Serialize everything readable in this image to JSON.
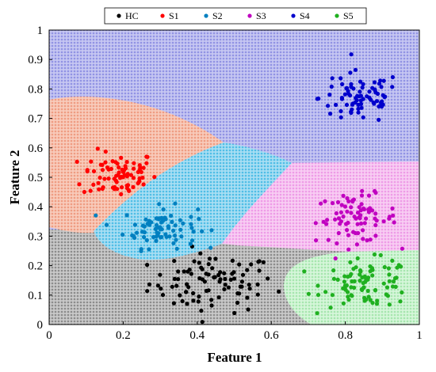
{
  "chart_data": {
    "type": "scatter",
    "title": "",
    "xlabel": "Feature 1",
    "ylabel": "Feature 2",
    "xlim": [
      0,
      1
    ],
    "ylim": [
      0,
      1
    ],
    "xticks": [
      "0",
      "0.2",
      "0.4",
      "0.6",
      "0.8",
      "1"
    ],
    "yticks": [
      "0",
      "0.1",
      "0.2",
      "0.3",
      "0.4",
      "0.5",
      "0.6",
      "0.7",
      "0.8",
      "0.9",
      "1"
    ],
    "grid": false,
    "legend_position": "top",
    "background": "dense dotted decision-region map (one colour per class)",
    "regions": [
      {
        "class": "S4",
        "color": "#b2b4ee",
        "description": "top band above about 0.55-0.78, full width"
      },
      {
        "class": "S1",
        "color": "#f4b6a0",
        "description": "upper-left lobe, x 0-0.55, y 0.33-0.76"
      },
      {
        "class": "S2",
        "color": "#8fd3ee",
        "description": "diagonal band from (0.15,0.3) to (0.8,0.55)"
      },
      {
        "class": "S3",
        "color": "#f4b6ee",
        "description": "right region, x 0.6-1, y 0.26-0.56"
      },
      {
        "class": "HC",
        "color": "#b9b9b9",
        "description": "bottom band, y 0-0.32"
      },
      {
        "class": "S5",
        "color": "#c2f0c8",
        "description": "bottom-right lobe, x 0.76-1, y 0.06-0.26"
      }
    ],
    "series": [
      {
        "name": "HC",
        "color": "#000000",
        "center": [
          0.44,
          0.14
        ],
        "spread": [
          0.085,
          0.05
        ],
        "points": 90
      },
      {
        "name": "S1",
        "color": "#ff0000",
        "center": [
          0.19,
          0.51
        ],
        "spread": [
          0.05,
          0.04
        ],
        "points": 80
      },
      {
        "name": "S2",
        "color": "#0080c0",
        "center": [
          0.3,
          0.33
        ],
        "spread": [
          0.05,
          0.035
        ],
        "points": 80
      },
      {
        "name": "S3",
        "color": "#c000c0",
        "center": [
          0.83,
          0.36
        ],
        "spread": [
          0.055,
          0.04
        ],
        "points": 80
      },
      {
        "name": "S4",
        "color": "#0000cc",
        "center": [
          0.84,
          0.77
        ],
        "spread": [
          0.055,
          0.045
        ],
        "points": 80
      },
      {
        "name": "S5",
        "color": "#20b020",
        "center": [
          0.86,
          0.14
        ],
        "spread": [
          0.06,
          0.04
        ],
        "points": 90
      }
    ]
  },
  "legend": {
    "items": [
      {
        "label": "HC",
        "color": "#000000"
      },
      {
        "label": "S1",
        "color": "#ff0000"
      },
      {
        "label": "S2",
        "color": "#0080c0"
      },
      {
        "label": "S3",
        "color": "#c000c0"
      },
      {
        "label": "S4",
        "color": "#0000cc"
      },
      {
        "label": "S5",
        "color": "#20b020"
      }
    ]
  }
}
